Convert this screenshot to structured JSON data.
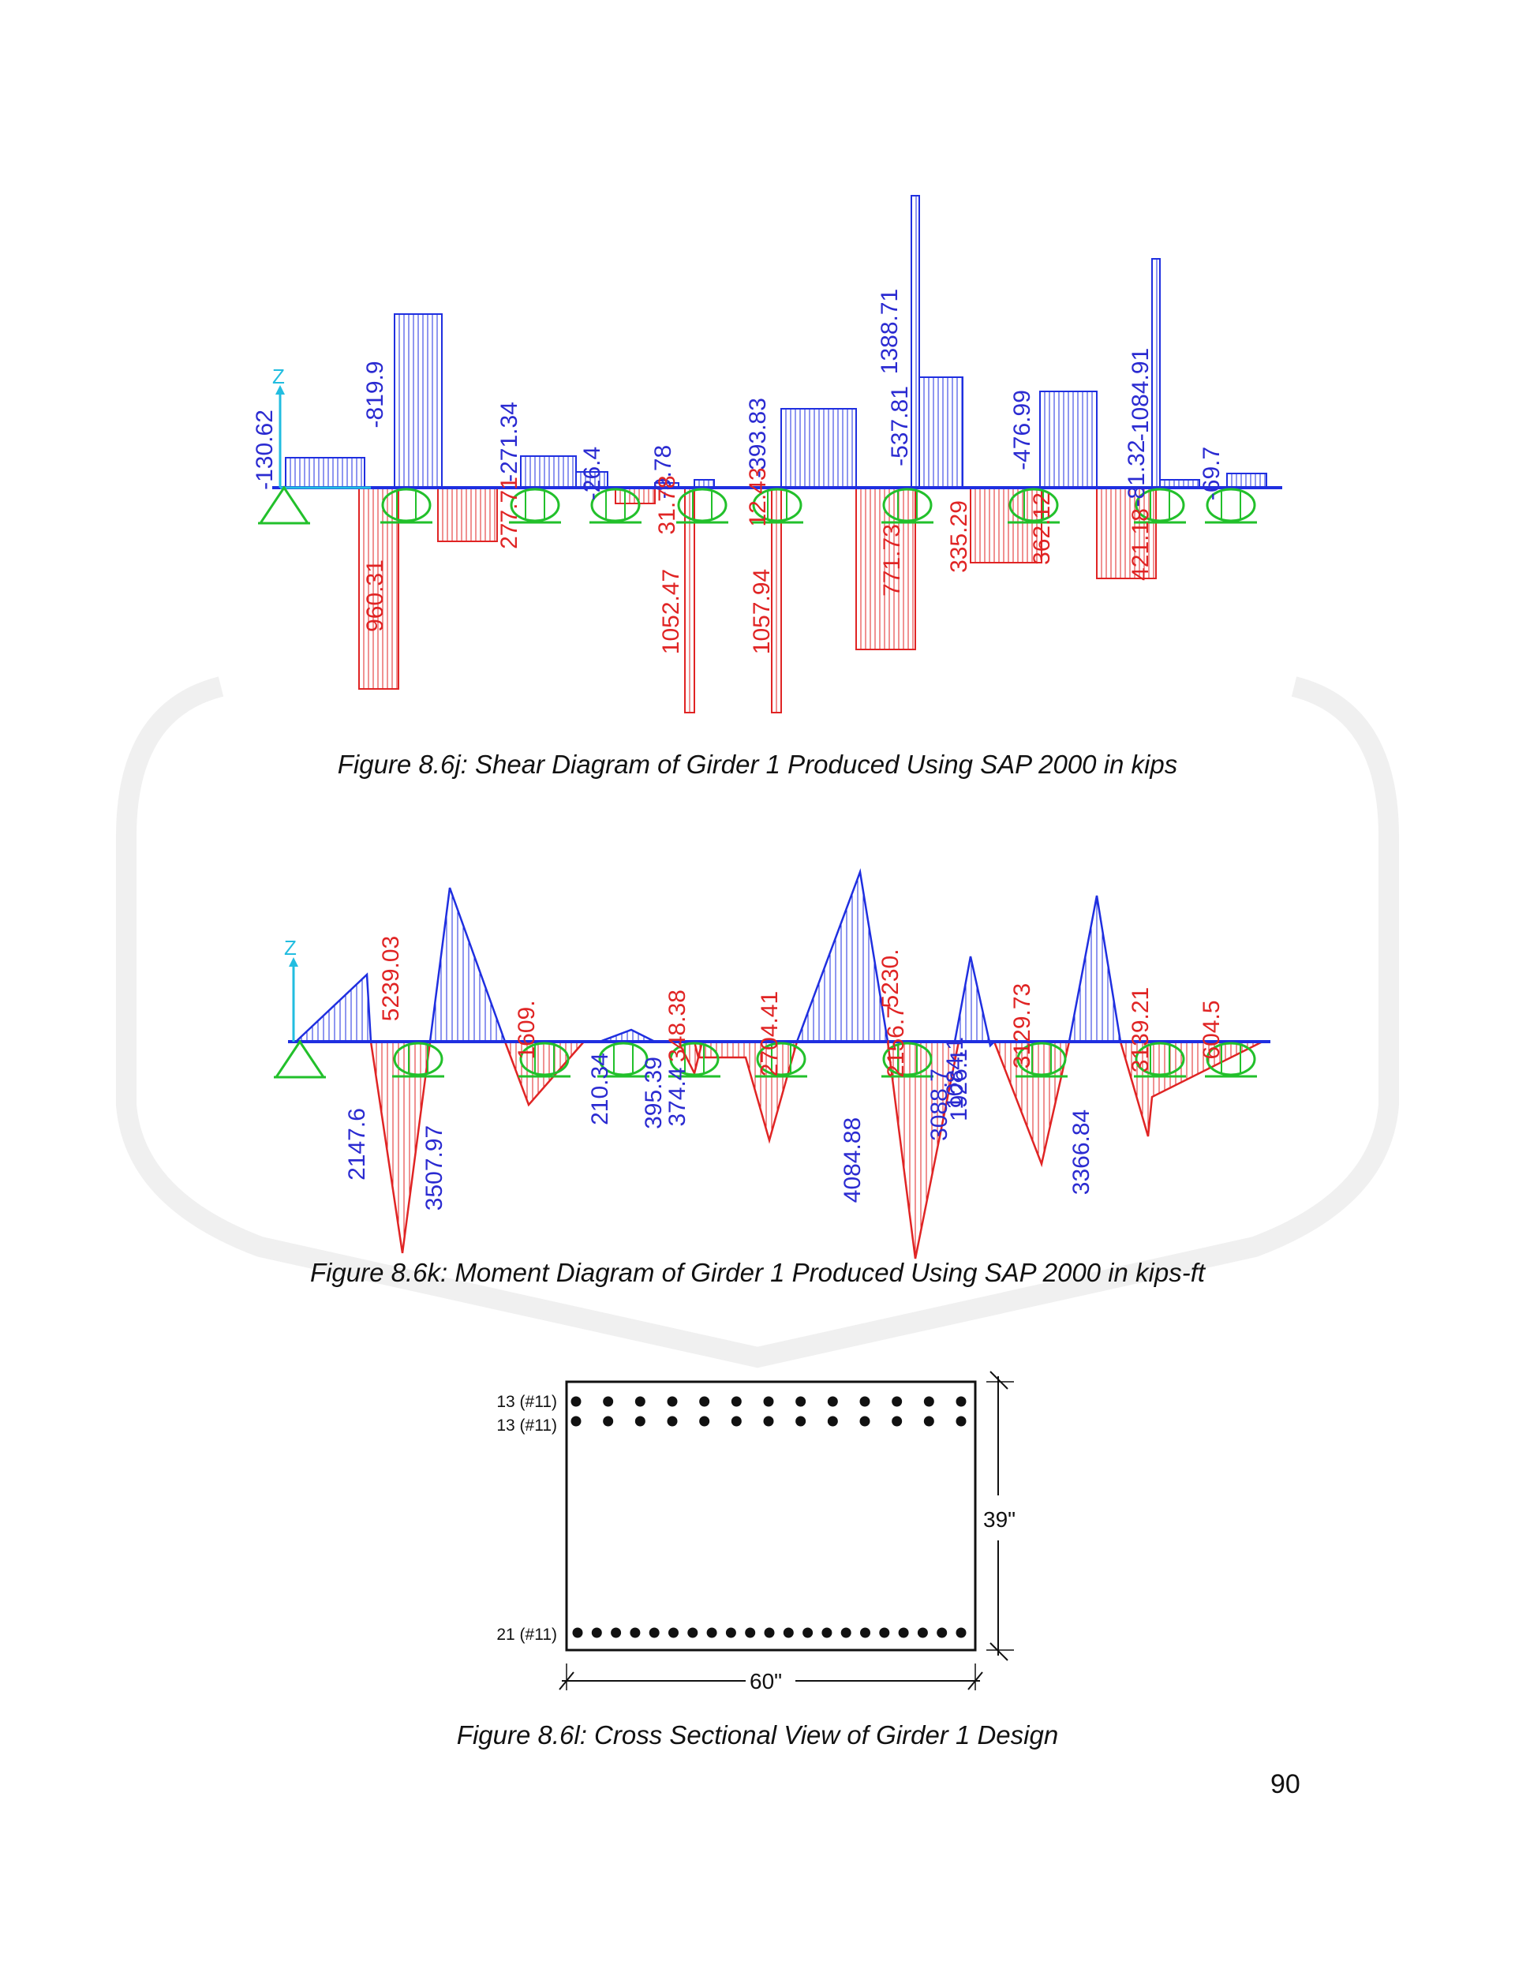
{
  "figures": {
    "shear": {
      "caption": "Figure 8.6j: Shear Diagram of Girder 1 Produced Using SAP 2000 in kips",
      "axis_label": "Z",
      "labels_blue": [
        "-130.62",
        "-819.9",
        "-271.34",
        "-26.4",
        "-9.78",
        "-393.83",
        "-537.81",
        "1388.71",
        "-476.99",
        "-1084.91",
        "-81.32",
        "-69.7"
      ],
      "labels_red": [
        "960.31",
        "277.71",
        "31.78",
        "1052.47",
        "12.43",
        "1057.94",
        "771.73",
        "335.29",
        "362.12",
        "421.18"
      ]
    },
    "moment": {
      "caption": "Figure 8.6k: Moment Diagram of Girder 1 Produced Using SAP 2000 in kips-ft",
      "axis_label": "Z",
      "labels_red": [
        "5239.03",
        "1609.",
        "2704.41",
        "5230.",
        "3129.73",
        "3139.21",
        "604.5",
        "2156.7",
        "348.38"
      ],
      "labels_blue": [
        "2147.6",
        "3507.97",
        "210.34",
        "395.39",
        "374.4",
        "4084.88",
        "3088.7",
        "1926.1",
        "3366.84",
        "1084.1"
      ]
    },
    "section": {
      "caption": "Figure 8.6l: Cross Sectional View of Girder 1 Design",
      "top_row_1": "13 (#11)",
      "top_row_2": "13 (#11)",
      "bottom_row": "21 (#11)",
      "height": "39\"",
      "width": "60\""
    }
  },
  "page_number": "90"
}
